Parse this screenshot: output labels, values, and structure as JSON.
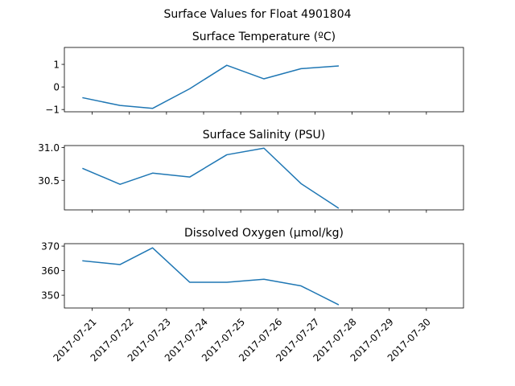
{
  "figure": {
    "title": "Surface Values for Float 4901804"
  },
  "chart_data": [
    {
      "type": "line",
      "title": "Surface Temperature (ºC)",
      "xlabel": "",
      "ylabel": "",
      "ylim": [
        -1.1,
        1.75
      ],
      "yticks": [
        -1,
        0,
        1
      ],
      "ytick_labels": [
        "−1",
        "0",
        "1"
      ],
      "grid": false,
      "series": [
        {
          "color": "#1f77b4",
          "x": [
            "2017-07-20 18:00",
            "2017-07-21 18:00",
            "2017-07-22 15:00",
            "2017-07-23 15:00",
            "2017-07-24 15:00",
            "2017-07-25 15:00",
            "2017-07-26 15:00",
            "2017-07-27 15:00"
          ],
          "values": [
            -0.48,
            -0.82,
            -0.95,
            -0.08,
            0.96,
            0.36,
            0.81,
            0.93
          ]
        }
      ]
    },
    {
      "type": "line",
      "title": "Surface Salinity (PSU)",
      "xlabel": "",
      "ylabel": "",
      "ylim": [
        30.05,
        31.03
      ],
      "yticks": [
        30.5,
        31.0
      ],
      "ytick_labels": [
        "30.5",
        "31.0"
      ],
      "grid": false,
      "series": [
        {
          "color": "#1f77b4",
          "x": [
            "2017-07-20 18:00",
            "2017-07-21 18:00",
            "2017-07-22 15:00",
            "2017-07-23 15:00",
            "2017-07-24 15:00",
            "2017-07-25 15:00",
            "2017-07-26 15:00",
            "2017-07-27 15:00"
          ],
          "values": [
            30.68,
            30.44,
            30.61,
            30.55,
            30.89,
            30.99,
            30.45,
            30.08
          ]
        }
      ]
    },
    {
      "type": "line",
      "title": "Dissolved Oxygen (μmol/kg)",
      "xlabel": "",
      "ylabel": "",
      "ylim": [
        344.8,
        371.0
      ],
      "yticks": [
        350,
        360,
        370
      ],
      "ytick_labels": [
        "350",
        "360",
        "370"
      ],
      "grid": false,
      "series": [
        {
          "color": "#1f77b4",
          "x": [
            "2017-07-20 18:00",
            "2017-07-21 18:00",
            "2017-07-22 15:00",
            "2017-07-23 15:00",
            "2017-07-24 15:00",
            "2017-07-25 15:00",
            "2017-07-26 15:00",
            "2017-07-27 15:00"
          ],
          "values": [
            364.0,
            362.5,
            369.3,
            355.3,
            355.3,
            356.5,
            353.8,
            346.2
          ]
        }
      ]
    }
  ],
  "x_axis": {
    "type": "date",
    "range": [
      "2017-07-20 06:00",
      "2017-07-31 00:00"
    ],
    "tick_labels": [
      "2017-07-21",
      "2017-07-22",
      "2017-07-23",
      "2017-07-24",
      "2017-07-25",
      "2017-07-26",
      "2017-07-27",
      "2017-07-28",
      "2017-07-29",
      "2017-07-30"
    ]
  }
}
